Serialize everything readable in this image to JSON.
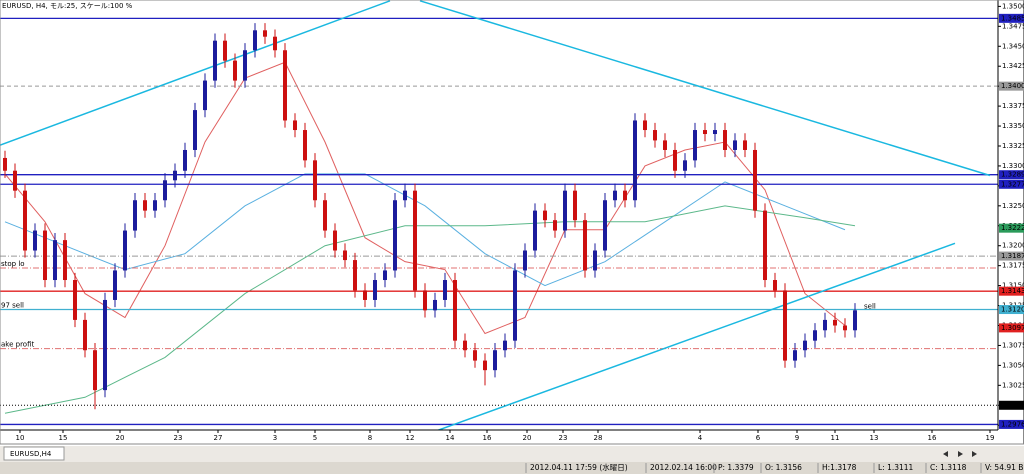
{
  "header": {
    "title": "EURUSD, H4, モル:25, スケール:100 %"
  },
  "chart_data": {
    "type": "candlestick",
    "bull_color": "#1c1c9c",
    "bear_color": "#cc1010",
    "xlim": [
      -0.5,
      99.3
    ],
    "ylim": [
      1.2969,
      1.3508
    ],
    "yticks": [
      {
        "value": 1.35,
        "label": "1.3500"
      },
      1.3475,
      {
        "value": 1.345,
        "label": "1.3450"
      },
      1.3425,
      {
        "value": 1.34,
        "label": "1.3400"
      },
      1.3375,
      {
        "value": 1.335,
        "label": "1.3350"
      },
      1.3325,
      {
        "value": 1.33,
        "label": "1.3300"
      },
      1.3275,
      {
        "value": 1.325,
        "label": "1.3250"
      },
      1.3225,
      {
        "value": 1.32,
        "label": "1.3200"
      },
      1.3175,
      {
        "value": 1.315,
        "label": "1.3150"
      },
      1.3125,
      {
        "value": 1.31,
        "label": "1.3100"
      },
      1.3075,
      {
        "value": 1.305,
        "label": "1.3050"
      },
      1.3025,
      {
        "value": 1.3,
        "label": "1.3000"
      },
      1.2975
    ],
    "xticks": [
      {
        "value": 1.5,
        "label": "10"
      },
      {
        "value": 5.8,
        "label": "15"
      },
      {
        "value": 11.5,
        "label": "20"
      },
      {
        "value": 17.3,
        "label": "23"
      },
      {
        "value": 21.3,
        "label": "27"
      },
      {
        "value": 27,
        "label": "3"
      },
      {
        "value": 31,
        "label": "5"
      },
      {
        "value": 36.5,
        "label": "8"
      },
      {
        "value": 40.5,
        "label": "12"
      },
      {
        "value": 44.5,
        "label": "14"
      },
      {
        "value": 48.2,
        "label": "16"
      },
      {
        "value": 52.2,
        "label": "20"
      },
      {
        "value": 55.8,
        "label": "23"
      },
      {
        "value": 59.3,
        "label": "28"
      },
      {
        "value": 69.5,
        "label": "4"
      },
      {
        "value": 75.3,
        "label": "6"
      },
      {
        "value": 79.2,
        "label": "9"
      },
      {
        "value": 83,
        "label": "11"
      },
      {
        "value": 86.9,
        "label": "13"
      },
      {
        "value": 92.7,
        "label": "16"
      },
      {
        "value": 98.5,
        "label": "19"
      }
    ],
    "candles": [
      [
        1.331,
        1.3319,
        1.3285,
        1.3294
      ],
      [
        1.3294,
        1.3303,
        1.326,
        1.3269
      ],
      [
        1.3269,
        1.3278,
        1.3185,
        1.3194
      ],
      [
        1.3194,
        1.3228,
        1.3185,
        1.3219
      ],
      [
        1.3219,
        1.3228,
        1.3148,
        1.3157
      ],
      [
        1.3157,
        1.3216,
        1.3148,
        1.3207
      ],
      [
        1.3207,
        1.3216,
        1.3148,
        1.3157
      ],
      [
        1.3157,
        1.3166,
        1.3098,
        1.3107
      ],
      [
        1.3107,
        1.3116,
        1.306,
        1.3069
      ],
      [
        1.3069,
        1.3078,
        1.2995,
        1.3019
      ],
      [
        1.3019,
        1.3141,
        1.301,
        1.3132
      ],
      [
        1.3132,
        1.3178,
        1.3123,
        1.3169
      ],
      [
        1.3169,
        1.3228,
        1.316,
        1.3219
      ],
      [
        1.3219,
        1.3266,
        1.321,
        1.3257
      ],
      [
        1.3257,
        1.3266,
        1.3235,
        1.3244
      ],
      [
        1.3244,
        1.3266,
        1.3235,
        1.3257
      ],
      [
        1.3257,
        1.3291,
        1.3248,
        1.3282
      ],
      [
        1.3282,
        1.3303,
        1.3273,
        1.3294
      ],
      [
        1.3294,
        1.3329,
        1.3285,
        1.332
      ],
      [
        1.332,
        1.3379,
        1.3311,
        1.337
      ],
      [
        1.337,
        1.3416,
        1.3361,
        1.3407
      ],
      [
        1.3407,
        1.3466,
        1.3398,
        1.3457
      ],
      [
        1.3457,
        1.3466,
        1.3423,
        1.3432
      ],
      [
        1.3432,
        1.3441,
        1.3398,
        1.3407
      ],
      [
        1.3407,
        1.3454,
        1.3398,
        1.3445
      ],
      [
        1.3445,
        1.3479,
        1.3436,
        1.347
      ],
      [
        1.347,
        1.3479,
        1.3453,
        1.3462
      ],
      [
        1.3462,
        1.3471,
        1.3436,
        1.3445
      ],
      [
        1.3445,
        1.3454,
        1.3348,
        1.3357
      ],
      [
        1.3357,
        1.3366,
        1.3336,
        1.3345
      ],
      [
        1.3345,
        1.3354,
        1.3298,
        1.3307
      ],
      [
        1.3307,
        1.3316,
        1.3248,
        1.3257
      ],
      [
        1.3257,
        1.3266,
        1.321,
        1.3219
      ],
      [
        1.3219,
        1.3228,
        1.3185,
        1.3194
      ],
      [
        1.3194,
        1.3203,
        1.3173,
        1.3182
      ],
      [
        1.3182,
        1.3191,
        1.3135,
        1.3144
      ],
      [
        1.3144,
        1.3153,
        1.3123,
        1.3132
      ],
      [
        1.3132,
        1.3166,
        1.3123,
        1.3157
      ],
      [
        1.3157,
        1.3178,
        1.3148,
        1.3169
      ],
      [
        1.3169,
        1.3266,
        1.316,
        1.3257
      ],
      [
        1.3257,
        1.3278,
        1.3248,
        1.3269
      ],
      [
        1.3269,
        1.3278,
        1.3135,
        1.3144
      ],
      [
        1.3144,
        1.3153,
        1.311,
        1.3119
      ],
      [
        1.3119,
        1.3141,
        1.311,
        1.3132
      ],
      [
        1.3132,
        1.3166,
        1.3123,
        1.3157
      ],
      [
        1.3157,
        1.3166,
        1.3072,
        1.3081
      ],
      [
        1.3081,
        1.309,
        1.306,
        1.3069
      ],
      [
        1.3069,
        1.3078,
        1.3047,
        1.3056
      ],
      [
        1.3056,
        1.3065,
        1.3025,
        1.3044
      ],
      [
        1.3044,
        1.3078,
        1.3035,
        1.3069
      ],
      [
        1.3069,
        1.309,
        1.306,
        1.3081
      ],
      [
        1.3081,
        1.3178,
        1.3072,
        1.3169
      ],
      [
        1.3169,
        1.3203,
        1.316,
        1.3194
      ],
      [
        1.3194,
        1.3253,
        1.3185,
        1.3244
      ],
      [
        1.3244,
        1.3253,
        1.3223,
        1.3232
      ],
      [
        1.3232,
        1.3241,
        1.321,
        1.3219
      ],
      [
        1.3219,
        1.3278,
        1.321,
        1.3269
      ],
      [
        1.3269,
        1.3278,
        1.3223,
        1.3232
      ],
      [
        1.3232,
        1.3241,
        1.316,
        1.3169
      ],
      [
        1.3169,
        1.3203,
        1.316,
        1.3194
      ],
      [
        1.3194,
        1.3266,
        1.3185,
        1.3257
      ],
      [
        1.3257,
        1.3278,
        1.3248,
        1.3269
      ],
      [
        1.3269,
        1.3278,
        1.3248,
        1.3257
      ],
      [
        1.3257,
        1.3366,
        1.3248,
        1.3357
      ],
      [
        1.3357,
        1.3366,
        1.3336,
        1.3345
      ],
      [
        1.3345,
        1.3354,
        1.3323,
        1.3332
      ],
      [
        1.3332,
        1.3341,
        1.3311,
        1.332
      ],
      [
        1.332,
        1.3329,
        1.3285,
        1.3294
      ],
      [
        1.3294,
        1.3316,
        1.3285,
        1.3307
      ],
      [
        1.3307,
        1.3354,
        1.3298,
        1.3345
      ],
      [
        1.3345,
        1.3354,
        1.3331,
        1.334
      ],
      [
        1.334,
        1.3354,
        1.3331,
        1.3345
      ],
      [
        1.3345,
        1.3354,
        1.3311,
        1.332
      ],
      [
        1.332,
        1.3341,
        1.3311,
        1.3332
      ],
      [
        1.3332,
        1.3341,
        1.3311,
        1.332
      ],
      [
        1.332,
        1.3329,
        1.3235,
        1.3244
      ],
      [
        1.3244,
        1.3253,
        1.3148,
        1.3157
      ],
      [
        1.3157,
        1.3166,
        1.3135,
        1.3144
      ],
      [
        1.3144,
        1.3153,
        1.3047,
        1.3056
      ],
      [
        1.3056,
        1.3078,
        1.3047,
        1.3069
      ],
      [
        1.3069,
        1.309,
        1.306,
        1.3081
      ],
      [
        1.3081,
        1.3103,
        1.3072,
        1.3094
      ],
      [
        1.3094,
        1.3116,
        1.3085,
        1.3107
      ],
      [
        1.3107,
        1.3116,
        1.3091,
        1.31
      ],
      [
        1.31,
        1.3109,
        1.3085,
        1.3094
      ],
      [
        1.3094,
        1.3128,
        1.3085,
        1.3119
      ]
    ],
    "moving_averages": [
      {
        "color": "#e06060",
        "x": [
          0,
          4,
          8,
          12,
          16,
          20,
          24,
          28,
          32,
          36,
          40,
          44,
          48,
          52,
          56,
          60,
          64,
          68,
          72,
          76,
          80,
          84
        ],
        "values": [
          1.329,
          1.323,
          1.314,
          1.311,
          1.32,
          1.333,
          1.341,
          1.343,
          1.333,
          1.321,
          1.318,
          1.317,
          1.309,
          1.311,
          1.322,
          1.322,
          1.33,
          1.332,
          1.333,
          1.327,
          1.314,
          1.31
        ]
      },
      {
        "color": "#5ab0e0",
        "x": [
          0,
          6,
          12,
          18,
          24,
          30,
          36,
          42,
          48,
          54,
          60,
          66,
          72,
          78,
          84
        ],
        "values": [
          1.323,
          1.32,
          1.317,
          1.319,
          1.325,
          1.329,
          1.329,
          1.325,
          1.319,
          1.315,
          1.318,
          1.323,
          1.328,
          1.325,
          1.322
        ]
      },
      {
        "color": "#5cb88a",
        "x": [
          0,
          8,
          16,
          24,
          32,
          40,
          48,
          56,
          64,
          72,
          80,
          85
        ],
        "values": [
          1.299,
          1.301,
          1.306,
          1.314,
          1.32,
          1.3225,
          1.3225,
          1.323,
          1.323,
          1.325,
          1.3235,
          1.3225
        ]
      }
    ],
    "trendlines": [
      {
        "color": "#1ab8e0",
        "x": [
          -0.5,
          38.5
        ],
        "y": [
          1.3326,
          1.3507
        ]
      },
      {
        "color": "#1ab8e0",
        "x": [
          41.5,
          98.5
        ],
        "y": [
          1.3507,
          1.3288
        ]
      },
      {
        "color": "#1ab8e0",
        "x": [
          40.5,
          95
        ],
        "y": [
          1.2956,
          1.3203
        ]
      }
    ],
    "levels": [
      {
        "value": 1.3485,
        "label": "1.3485",
        "color": "#2020c0",
        "style": "solid"
      },
      {
        "value": 1.34,
        "label": "1.3400",
        "color": "#999999",
        "style": "dashed"
      },
      {
        "value": 1.3289,
        "label": "1.3289",
        "color": "#2020c0",
        "style": "solid"
      },
      {
        "value": 1.3277,
        "label": "1.3277",
        "color": "#2020c0",
        "style": "solid"
      },
      {
        "value": 1.3222,
        "label": "1.3222",
        "color": "#2a9a5a",
        "style": "none"
      },
      {
        "value": 1.3187,
        "label": "1.3187",
        "color": "#999999",
        "style": "dashdot"
      },
      {
        "value": 1.3172,
        "color": "#e07070",
        "style": "dashdot",
        "text": "stop lo"
      },
      {
        "value": 1.3143,
        "label": "1.3143",
        "color": "#e02020",
        "style": "solid"
      },
      {
        "value": 1.312,
        "label": "1.3120",
        "color": "#40b0d0",
        "style": "solid",
        "text": "97 sell"
      },
      {
        "value": 1.3097,
        "label": "1.3097",
        "color": "#e02020",
        "style": "none"
      },
      {
        "value": 1.3071,
        "color": "#e07070",
        "style": "dashdot",
        "text": "ake profit"
      },
      {
        "value": 1.3,
        "label": "1.3000",
        "color": "#000000",
        "style": "dotted"
      },
      {
        "value": 1.2976,
        "label": "1.2976",
        "color": "#2020c0",
        "style": "solid"
      }
    ],
    "annotations": [
      {
        "text": "sell",
        "x": 85.6,
        "y": 1.3124,
        "color": "#e02020"
      }
    ]
  },
  "tab": "EURUSD,H4",
  "status": [
    "2012.04.11 17:59 (水曜日)",
    "2012.02.14 16:00",
    "P: 1.3379",
    "O: 1.3156",
    "H:1.3178",
    "L: 1.3111",
    "C: 1.3118",
    "V: 54.91 B"
  ]
}
